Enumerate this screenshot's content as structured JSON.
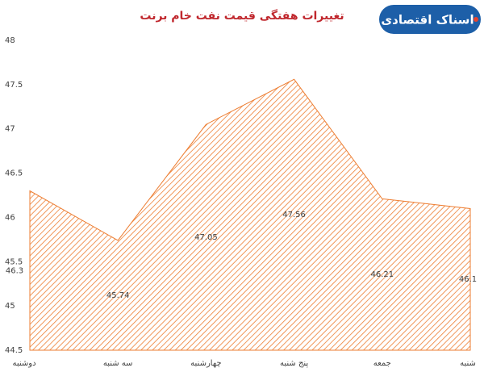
{
  "logo": "اسناک اقتصادی",
  "chart_data": {
    "type": "area",
    "title": "تغییرات هفتگی قیمت نفت خام برنت",
    "categories": [
      "دوشنبه",
      "سه شنبه",
      "چهارشنبه",
      "پنج شنبه",
      "جمعه",
      "شنبه"
    ],
    "values": [
      46.3,
      45.74,
      47.05,
      47.56,
      46.21,
      46.1
    ],
    "color": "#ed7d31",
    "ylim": [
      44.5,
      48
    ],
    "yticks": [
      44.5,
      45,
      45.5,
      46,
      46.5,
      47,
      47.5,
      48
    ],
    "grid": false
  }
}
